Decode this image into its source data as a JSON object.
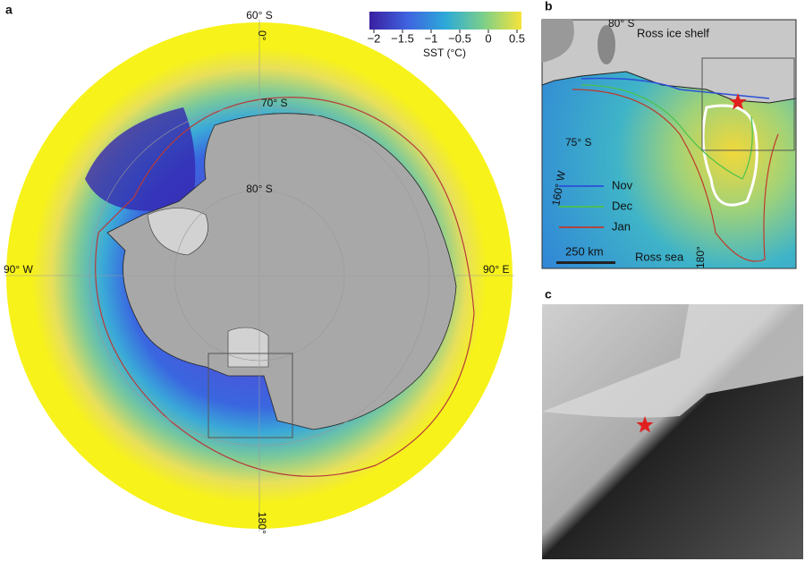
{
  "panel_a": {
    "label": "a",
    "lat_labels": [
      "60° S",
      "70° S",
      "80° S"
    ],
    "lon_labels": [
      "0°",
      "90° W",
      "90° E",
      "180°"
    ],
    "colorbar": {
      "label": "SST (°C)",
      "ticks": [
        {
          "value": -2,
          "label": "−2"
        },
        {
          "value": -1.5,
          "label": "−1.5"
        },
        {
          "value": -1,
          "label": "−1"
        },
        {
          "value": -0.5,
          "label": "−0.5"
        },
        0,
        0.5
      ]
    }
  },
  "panel_b": {
    "label": "b",
    "lat_labels": [
      "80° S",
      "75° S"
    ],
    "lon_labels": [
      "160° W",
      "180°"
    ],
    "ice_shelf": "Ross ice shelf",
    "sea": "Ross sea",
    "scale_bar": "250 km",
    "legend": [
      {
        "name": "Nov",
        "color": "#2b4fd8"
      },
      {
        "name": "Dec",
        "color": "#4cc24c"
      },
      {
        "name": "Jan",
        "color": "#c0392b"
      }
    ]
  },
  "panel_c": {
    "label": "c"
  }
}
